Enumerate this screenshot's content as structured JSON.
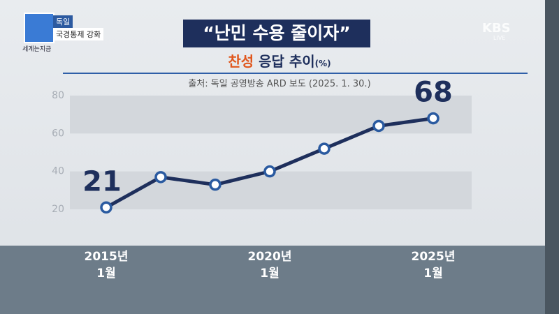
{
  "header": {
    "tag": "독일",
    "headline": "국경통제 강화",
    "program": "세계는지금",
    "broadcaster": "KBS",
    "live": "LIVE"
  },
  "chart_data": {
    "type": "line",
    "title": "“난민 수용 줄이자”",
    "subtitle": {
      "highlight": "찬성",
      "text": "응답 추이",
      "unit": "(%)"
    },
    "source": "출처: 독일 공영방송 ARD 보도 (2025. 1. 30.)",
    "categories": [
      "2015년\n1월",
      null,
      null,
      "2020년\n1월",
      null,
      null,
      "2025년\n1월"
    ],
    "values": [
      21,
      37,
      33,
      40,
      52,
      64,
      68
    ],
    "data_labels": "first-last",
    "color": "#1e2f5c",
    "marker_color": "#2a5aa0",
    "ylim": [
      20,
      80
    ],
    "yticks": [
      20,
      40,
      60,
      80
    ],
    "grid": "bands"
  }
}
